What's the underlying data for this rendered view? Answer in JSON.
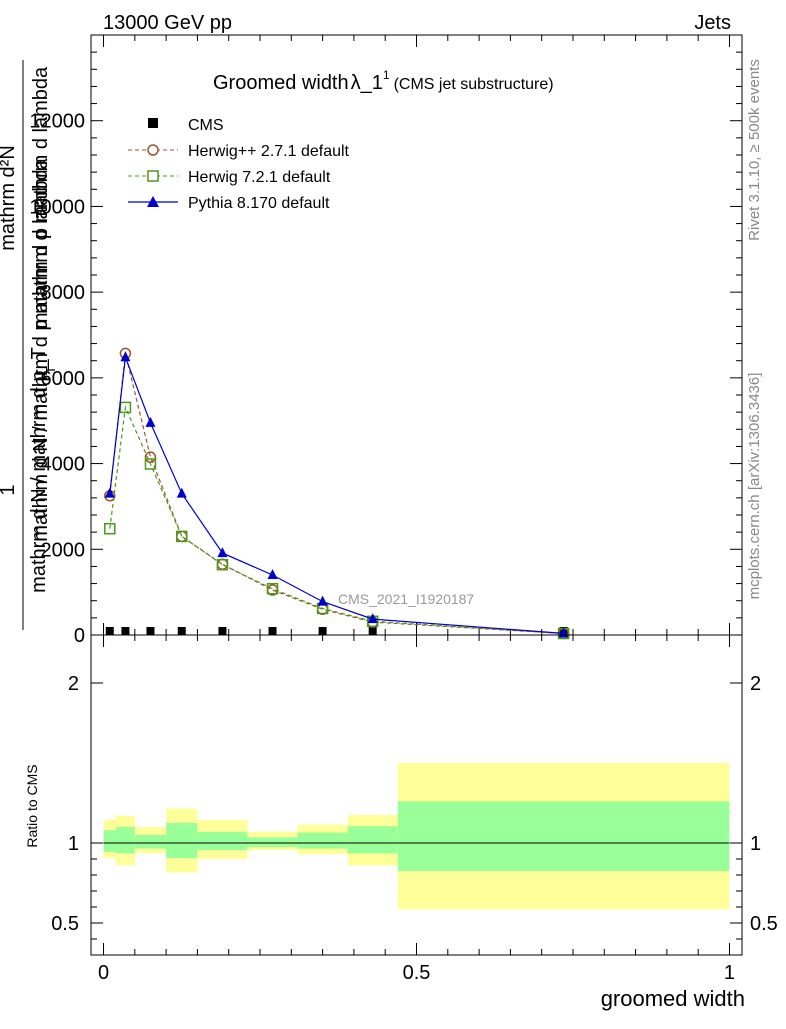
{
  "header": {
    "left": "13000 GeV pp",
    "right": "Jets"
  },
  "side_text": {
    "top": "Rivet 3.1.10, ≥ 500k events",
    "bottom": "mcplots.cern.ch [arXiv:1306.3436]"
  },
  "watermark": "CMS_2021_I1920187",
  "chart_data": [
    {
      "type": "line",
      "title": "Groomed width",
      "title_symbol": "λ_1",
      "title_superscript": "1",
      "subtitle": "(CMS jet substructure)",
      "xlabel": "groomed width",
      "ylabel_lines": [
        "mathrm d²N",
        "mathrm d p mathrm d lambda",
        "1",
        "mathrm d N / mathrm d p_T",
        "mathrm d N / mathrm d p mathrm d lambda"
      ],
      "ylabel_sub": "T",
      "xlim": [
        -0.02,
        1.02
      ],
      "ylim": [
        0,
        14000
      ],
      "yticks": [
        0,
        2000,
        4000,
        6000,
        8000,
        10000,
        12000
      ],
      "ytick_labels": [
        "0",
        "2000",
        "4000",
        "6000",
        "8000",
        "10000",
        "12000"
      ],
      "legend": [
        "CMS",
        "Herwig++ 2.7.1 default",
        "Herwig 7.2.1 default",
        "Pythia 8.170 default"
      ],
      "series": [
        {
          "name": "CMS",
          "color": "#000000",
          "marker": "square-filled",
          "x": [
            0.01,
            0.035,
            0.075,
            0.125,
            0.19,
            0.27,
            0.35,
            0.43,
            0.735
          ],
          "y": [
            0,
            0,
            0,
            0,
            0,
            0,
            0,
            0,
            0
          ]
        },
        {
          "name": "Herwig++ 2.7.1 default",
          "color": "#a0522d",
          "marker": "circle-open",
          "dashed": true,
          "x": [
            0.01,
            0.035,
            0.075,
            0.125,
            0.19,
            0.27,
            0.35,
            0.43,
            0.735
          ],
          "y": [
            3250,
            6570,
            4150,
            2300,
            1650,
            1050,
            600,
            300,
            35
          ]
        },
        {
          "name": "Herwig 7.2.1 default",
          "color": "#4a9a1a",
          "marker": "square-open",
          "dashed": true,
          "x": [
            0.01,
            0.035,
            0.075,
            0.125,
            0.19,
            0.27,
            0.35,
            0.43,
            0.735
          ],
          "y": [
            2480,
            5310,
            3990,
            2300,
            1640,
            1080,
            620,
            320,
            35
          ]
        },
        {
          "name": "Pythia 8.170 default",
          "color": "#0000cc",
          "marker": "triangle-filled",
          "dashed": false,
          "x": [
            0.01,
            0.035,
            0.075,
            0.125,
            0.19,
            0.27,
            0.35,
            0.43,
            0.735
          ],
          "y": [
            3300,
            6480,
            4950,
            3300,
            1910,
            1400,
            780,
            370,
            38
          ]
        }
      ]
    },
    {
      "type": "area",
      "ylabel": "Ratio to CMS",
      "xlim": [
        -0.02,
        1.02
      ],
      "ylim": [
        0.3,
        2.3
      ],
      "yticks": [
        0.5,
        1,
        2
      ],
      "ytick_labels": [
        "0.5",
        "1",
        "2"
      ],
      "xticks": [
        0,
        0.5,
        1
      ],
      "xtick_labels": [
        "0",
        "0.5",
        "1"
      ],
      "bin_edges": [
        0.0,
        0.02,
        0.05,
        0.1,
        0.15,
        0.23,
        0.31,
        0.39,
        0.47,
        1.0
      ],
      "band_outer_low": [
        0.905,
        0.86,
        0.935,
        0.815,
        0.9,
        0.955,
        0.93,
        0.86,
        0.585
      ],
      "band_outer_high": [
        1.145,
        1.17,
        1.1,
        1.215,
        1.145,
        1.07,
        1.115,
        1.175,
        1.5
      ],
      "band_inner_low": [
        0.945,
        0.935,
        0.965,
        0.905,
        0.955,
        0.975,
        0.965,
        0.935,
        0.825
      ],
      "band_inner_high": [
        1.08,
        1.1,
        1.05,
        1.125,
        1.07,
        1.035,
        1.065,
        1.105,
        1.26
      ],
      "band_outer_color": "#ffff99",
      "band_inner_color": "#99ff99",
      "reference": 1
    }
  ]
}
